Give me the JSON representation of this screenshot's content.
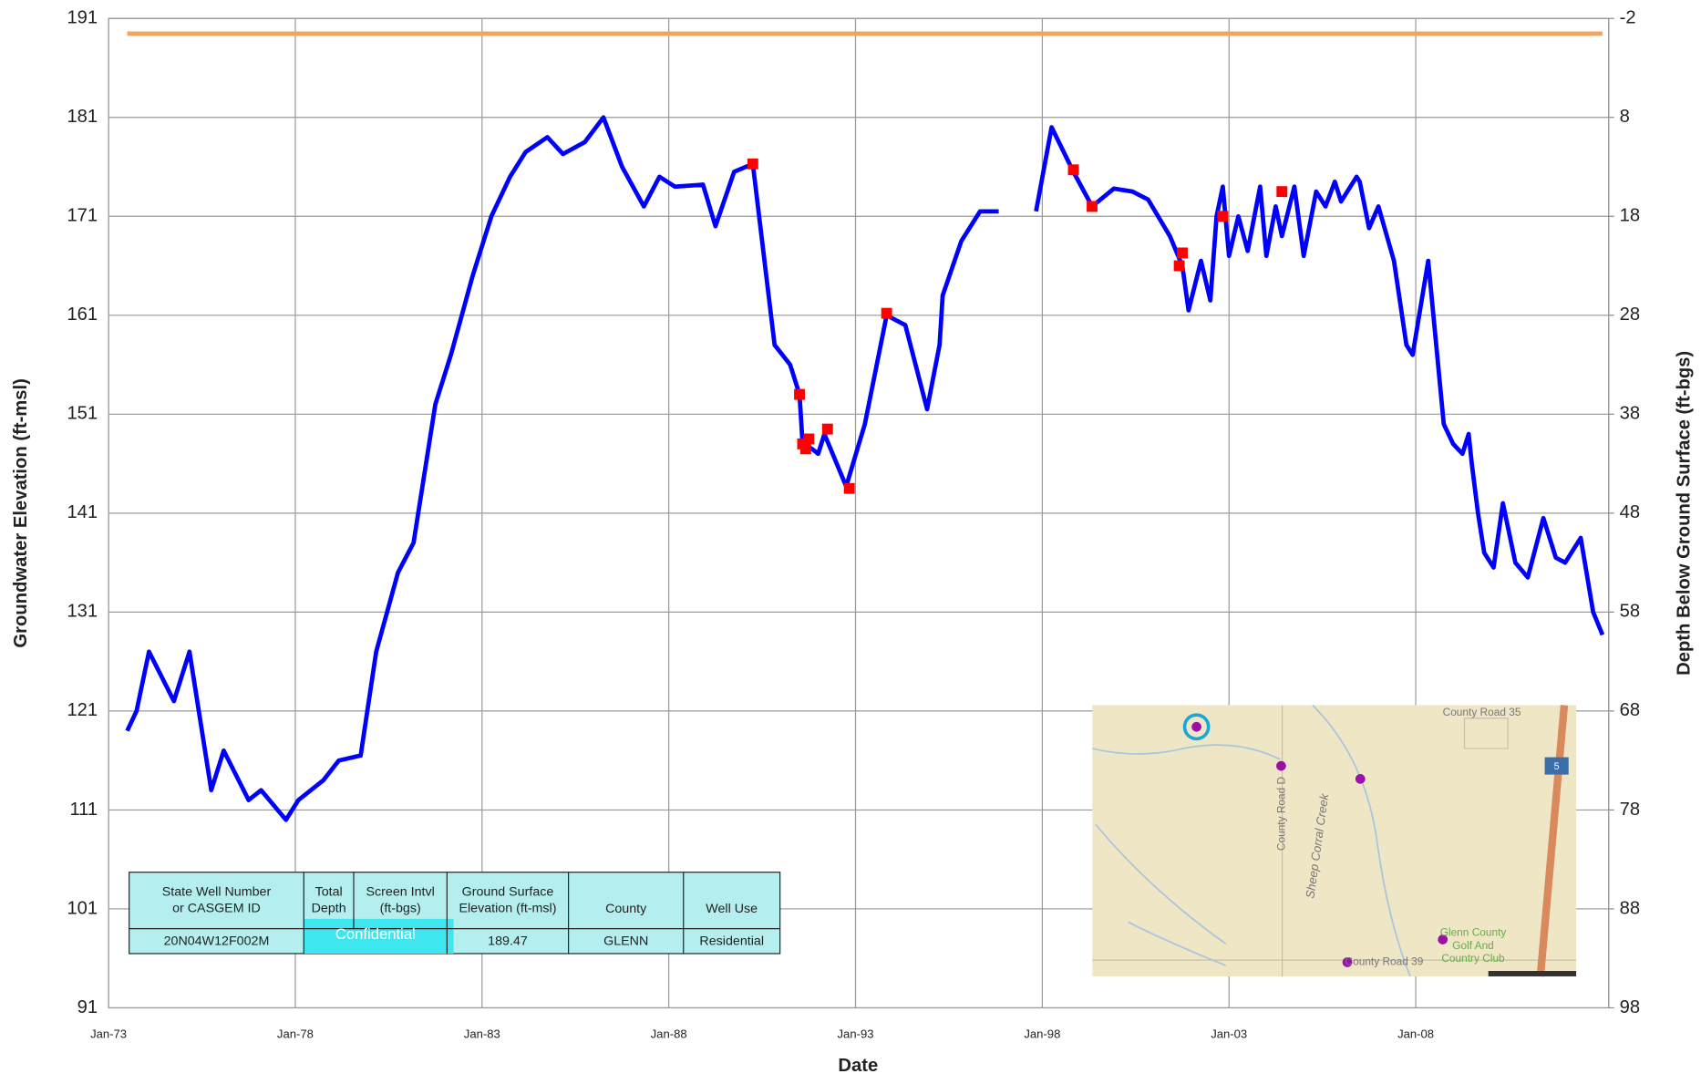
{
  "chart_data": {
    "type": "line",
    "ylabel": "Groundwater Elevation (ft-msl)",
    "y2label": "Depth Below Ground Surface (ft-bgs)",
    "xlabel": "Date",
    "xlim": [
      "1973-01",
      "2013-03"
    ],
    "xticks": [
      {
        "value": "1973-01",
        "label": "Jan-73"
      },
      {
        "value": "1978-01",
        "label": "Jan-78"
      },
      {
        "value": "1983-01",
        "label": "Jan-83"
      },
      {
        "value": "1988-01",
        "label": "Jan-88"
      },
      {
        "value": "1993-01",
        "label": "Jan-93"
      },
      {
        "value": "1998-01",
        "label": "Jan-98"
      },
      {
        "value": "2003-01",
        "label": "Jan-03"
      },
      {
        "value": "2008-01",
        "label": "Jan-08"
      }
    ],
    "ylim": [
      91,
      191
    ],
    "yticks": [
      91,
      101,
      111,
      121,
      131,
      141,
      151,
      161,
      171,
      181,
      191
    ],
    "y2lim": [
      98,
      -2
    ],
    "y2ticks": [
      98,
      88,
      78,
      68,
      58,
      48,
      38,
      28,
      18,
      8,
      -2
    ],
    "grid": true,
    "series": [
      {
        "color": "#f4a460",
        "x": [
          "1973-07",
          "2013-01"
        ],
        "values": [
          189.47,
          189.47
        ]
      },
      {
        "color": "#0000ff",
        "x": [
          "1973-07",
          "1973-10",
          "1974-02",
          "1974-10",
          "1975-03",
          "1975-10",
          "1976-02",
          "1976-10",
          "1977-02",
          "1977-10",
          "1978-02",
          "1978-10",
          "1979-03",
          "1979-10",
          "1980-03",
          "1980-10",
          "1981-03",
          "1981-10",
          "1982-03",
          "1982-10",
          "1983-04",
          "1983-10",
          "1984-03",
          "1984-10",
          "1985-03",
          "1985-10",
          "1986-04",
          "1986-10",
          "1987-05",
          "1987-10",
          "1988-03",
          "1988-12",
          "1989-04",
          "1989-10",
          "1990-04",
          "1990-11",
          "1991-04",
          "1991-07",
          "1991-08",
          "1991-11",
          "1992-01",
          "1992-03",
          "1992-10",
          "1993-04",
          "1993-11",
          "1994-05",
          "1994-12",
          "1995-04",
          "1995-05",
          "1995-11",
          "1996-05",
          "1996-11",
          "1997-05",
          "1997-11",
          "1998-04",
          "1998-11",
          "1999-05",
          "1999-12",
          "2000-06",
          "2000-11",
          "2001-06",
          "2001-10",
          "2001-12",
          "2002-04",
          "2002-07",
          "2002-09",
          "2002-11",
          "2003-01",
          "2003-04",
          "2003-07",
          "2003-11",
          "2004-01",
          "2004-04",
          "2004-06",
          "2004-10",
          "2005-01",
          "2005-05",
          "2005-08",
          "2005-11",
          "2006-01",
          "2006-06",
          "2006-07",
          "2006-10",
          "2007-01",
          "2007-06",
          "2007-10",
          "2007-12",
          "2008-05",
          "2008-10",
          "2009-01",
          "2009-04",
          "2009-06",
          "2009-07",
          "2009-09",
          "2009-11",
          "2010-02",
          "2010-05",
          "2010-09",
          "2011-01",
          "2011-06",
          "2011-10",
          "2012-01",
          "2012-06",
          "2012-10",
          "2013-01"
        ],
        "values": [
          119,
          121,
          127,
          122,
          127,
          113,
          117,
          112,
          113,
          110,
          112,
          114,
          116,
          116.5,
          127,
          135,
          138,
          152,
          157,
          165,
          171,
          175,
          177.5,
          179,
          177.3,
          178.5,
          181,
          176,
          172,
          175,
          174,
          174.2,
          170,
          175.5,
          176.3,
          158,
          156,
          153,
          148,
          147.5,
          147,
          149,
          143.7,
          150,
          161,
          160,
          151.5,
          158,
          163,
          168.5,
          171.5,
          171.5,
          null,
          171.5,
          180,
          175.5,
          172,
          173.8,
          173.5,
          172.7,
          169,
          166,
          161.5,
          166.5,
          162.5,
          171,
          174,
          167,
          171,
          167.5,
          174,
          167,
          172,
          169,
          174,
          167,
          173.5,
          172,
          174.5,
          172.5,
          175,
          174.5,
          169.8,
          172,
          166.5,
          158,
          157,
          166.5,
          150,
          148,
          147,
          149,
          146,
          141,
          137,
          135.5,
          142,
          136,
          134.5,
          140.5,
          136.5,
          136,
          138.5,
          131,
          128.7
        ]
      },
      {
        "color": "#ff0000",
        "type": "scatter",
        "x": [
          "1990-04",
          "1991-07",
          "1991-08",
          "1991-09",
          "1991-10",
          "1992-04",
          "1992-11",
          "1993-11",
          "1998-11",
          "1999-05",
          "2001-09",
          "2001-10",
          "2002-11",
          "2004-06"
        ],
        "values": [
          176.3,
          153,
          148,
          147.5,
          148.5,
          149.5,
          143.5,
          161.2,
          175.7,
          172,
          166,
          167.3,
          171,
          173.5
        ]
      }
    ]
  },
  "table": {
    "header": [
      [
        "State Well Number",
        "or CASGEM ID"
      ],
      [
        "Total",
        "Depth"
      ],
      [
        "Screen Intvl",
        "(ft-bgs)"
      ],
      [
        "Ground Surface",
        "Elevation (ft-msl)"
      ],
      [
        "County"
      ],
      [
        "Well Use"
      ]
    ],
    "row": [
      "20N04W12F002M",
      "Confidential",
      "189.47",
      "GLENN",
      "Residential"
    ]
  },
  "map": {
    "labels": [
      "County Road 35",
      "County Road D",
      "Sheep Corral Creek",
      "County Road 39",
      "Glenn County",
      "Golf And",
      "Country Club",
      "5"
    ]
  }
}
